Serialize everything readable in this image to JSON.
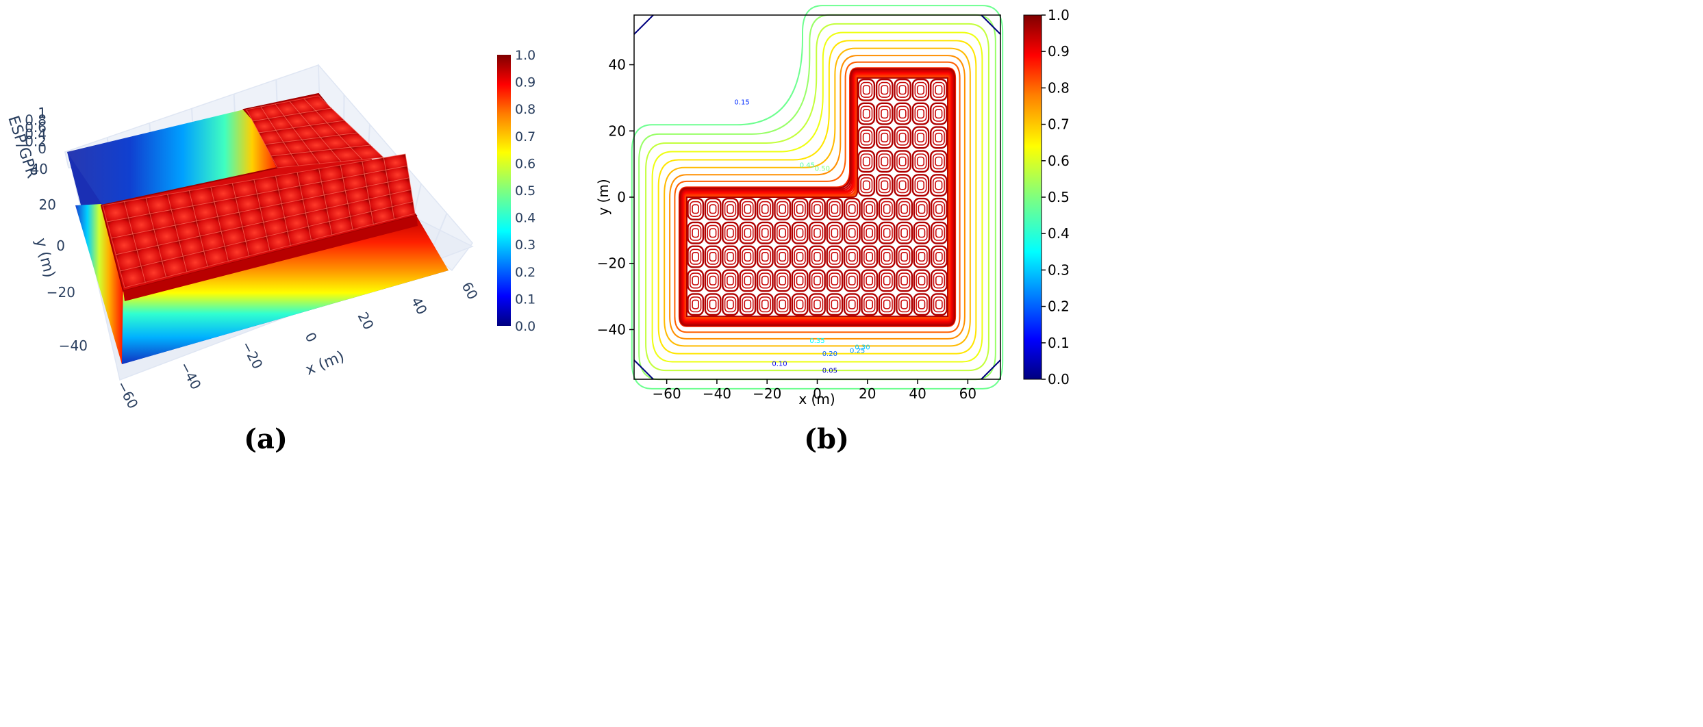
{
  "chart_data": [
    {
      "panel_label": "(a)",
      "type": "surface",
      "zlabel": "ESP/GPR",
      "xlabel": "x (m)",
      "ylabel": "y (m)",
      "x_ticks": [
        -60,
        -40,
        -20,
        0,
        20,
        40,
        60
      ],
      "y_ticks": [
        -40,
        -20,
        0,
        20,
        40
      ],
      "z_ticks": [
        "0",
        "0.2",
        "0.4",
        "0.6",
        "0.8",
        "1"
      ],
      "zlim": [
        0,
        1
      ],
      "colormap": "jet",
      "colorbar": {
        "min": 0.0,
        "max": 1.0,
        "ticks": [
          "0.0",
          "0.1",
          "0.2",
          "0.3",
          "0.4",
          "0.5",
          "0.6",
          "0.7",
          "0.8",
          "0.9",
          "1.0"
        ]
      },
      "grid": true
    },
    {
      "panel_label": "(b)",
      "type": "contour",
      "xlabel": "x (m)",
      "ylabel": "y (m)",
      "x_ticks": [
        -60,
        -40,
        -20,
        0,
        20,
        40,
        60
      ],
      "y_ticks": [
        -40,
        -20,
        0,
        20,
        40
      ],
      "xlim": [
        -73,
        73
      ],
      "ylim": [
        -55,
        55
      ],
      "colormap": "jet",
      "contour_labels": [
        {
          "text": "0.15",
          "x": -30,
          "y": 28
        },
        {
          "text": "0.45",
          "x": -4,
          "y": 9
        },
        {
          "text": "0.50",
          "x": 2,
          "y": 8
        },
        {
          "text": "0.35",
          "x": 0,
          "y": -44
        },
        {
          "text": "0.30",
          "x": 18,
          "y": -46
        },
        {
          "text": "0.25",
          "x": 16,
          "y": -47
        },
        {
          "text": "0.20",
          "x": 5,
          "y": -48
        },
        {
          "text": "0.10",
          "x": -15,
          "y": -51
        },
        {
          "text": "0.05",
          "x": 5,
          "y": -53
        }
      ],
      "colorbar": {
        "min": 0.0,
        "max": 1.0,
        "ticks": [
          "0.0",
          "0.1",
          "0.2",
          "0.3",
          "0.4",
          "0.5",
          "0.6",
          "0.7",
          "0.8",
          "0.9",
          "1.0"
        ]
      }
    }
  ],
  "colors": {
    "jet": [
      "#00007f",
      "#0000ff",
      "#007fff",
      "#00ffff",
      "#7fff7f",
      "#ffff00",
      "#ff7f00",
      "#ff0000",
      "#7f0000"
    ],
    "axis_text": "#2a3f5f",
    "grid": "#dfe6f3"
  }
}
